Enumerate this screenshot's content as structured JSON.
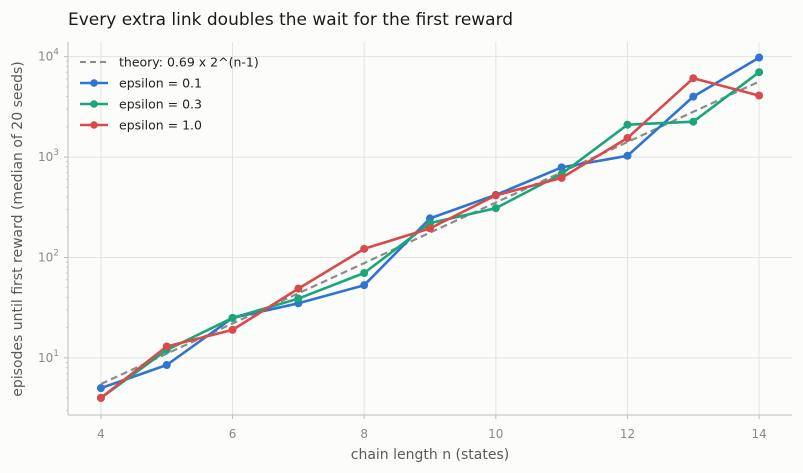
{
  "chart_data": {
    "type": "line",
    "title": "Every extra link doubles the wait for the first reward",
    "xlabel": "chain length n (states)",
    "ylabel": "episodes until first reward (median of 20 seeds)",
    "yscale": "log",
    "xlim": [
      3.5,
      14.5
    ],
    "ylim": [
      2.7,
      14000
    ],
    "x_ticks": [
      4,
      6,
      8,
      10,
      12,
      14
    ],
    "y_ticks": [
      {
        "value": 10,
        "base": "10",
        "exp": "1"
      },
      {
        "value": 100,
        "base": "10",
        "exp": "2"
      },
      {
        "value": 1000,
        "base": "10",
        "exp": "3"
      },
      {
        "value": 10000,
        "base": "10",
        "exp": "4"
      }
    ],
    "grid": true,
    "legend_position": "top-left",
    "x": [
      4,
      5,
      6,
      7,
      8,
      9,
      10,
      11,
      12,
      13,
      14
    ],
    "reference": {
      "name": "theory: 0.69 x 2^(n-1)",
      "color": "#8c8c8c",
      "style": "dashed",
      "values": [
        5.5,
        11,
        22,
        44,
        88,
        177,
        353,
        707,
        1413,
        2826,
        5652
      ]
    },
    "series": [
      {
        "name": "epsilon = 0.1",
        "color": "#2f74d0",
        "values": [
          5,
          8.5,
          25,
          35,
          53,
          245,
          420,
          790,
          1030,
          4000,
          9800
        ]
      },
      {
        "name": "epsilon = 0.3",
        "color": "#1aa57a",
        "values": [
          4,
          12,
          25,
          39,
          70,
          220,
          310,
          680,
          2100,
          2250,
          7000
        ]
      },
      {
        "name": "epsilon = 1.0",
        "color": "#d94a4a",
        "values": [
          4,
          13,
          19,
          49,
          122,
          195,
          415,
          620,
          1550,
          6100,
          4100
        ]
      }
    ]
  }
}
